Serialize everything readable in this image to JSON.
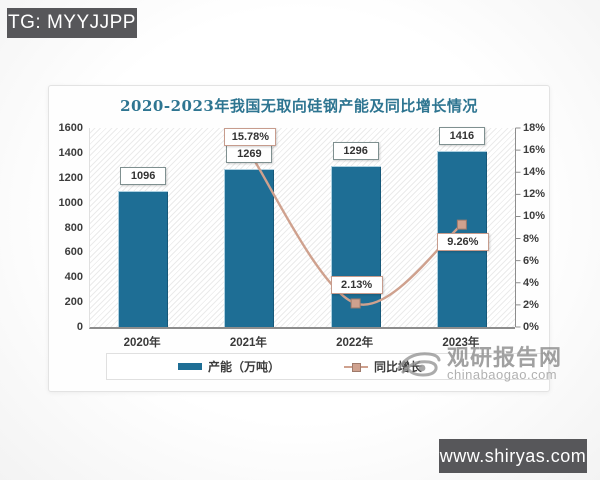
{
  "page": {
    "top_badge": "TG: MYYJJPP",
    "bottom_badge": "www.shiryas.com"
  },
  "watermark": {
    "brand": "观研报告网",
    "domain": "chinabaogao.com"
  },
  "chart_data": {
    "type": "combo",
    "title": "2020-2023年我国无取向硅钢产能及同比增长情况",
    "categories": [
      "2020年",
      "2021年",
      "2022年",
      "2023年"
    ],
    "series": [
      {
        "name": "产能（万吨）",
        "type": "bar",
        "axis": "left",
        "values": [
          1096,
          1269,
          1296,
          1416
        ],
        "color": "#1e6e95"
      },
      {
        "name": "同比增长",
        "type": "line",
        "axis": "right",
        "values": [
          null,
          15.78,
          2.13,
          9.26
        ],
        "labels": [
          "",
          "15.78%",
          "2.13%",
          "9.26%"
        ],
        "label_placement": [
          "",
          "above",
          "above",
          "below"
        ],
        "color": "#cfa18e",
        "marker": "square"
      }
    ],
    "left_axis": {
      "min": 0,
      "max": 1600,
      "step": 200,
      "ticks": [
        "1600",
        "1400",
        "1200",
        "1000",
        "800",
        "600",
        "400",
        "200",
        "0"
      ]
    },
    "right_axis": {
      "min": 0,
      "max": 18,
      "step": 2,
      "ticks": [
        "18%",
        "16%",
        "14%",
        "12%",
        "10%",
        "8%",
        "6%",
        "4%",
        "2%",
        "0%"
      ]
    },
    "legend_position": "bottom",
    "plot_background": "diagonal-hatch",
    "grid": "off"
  }
}
